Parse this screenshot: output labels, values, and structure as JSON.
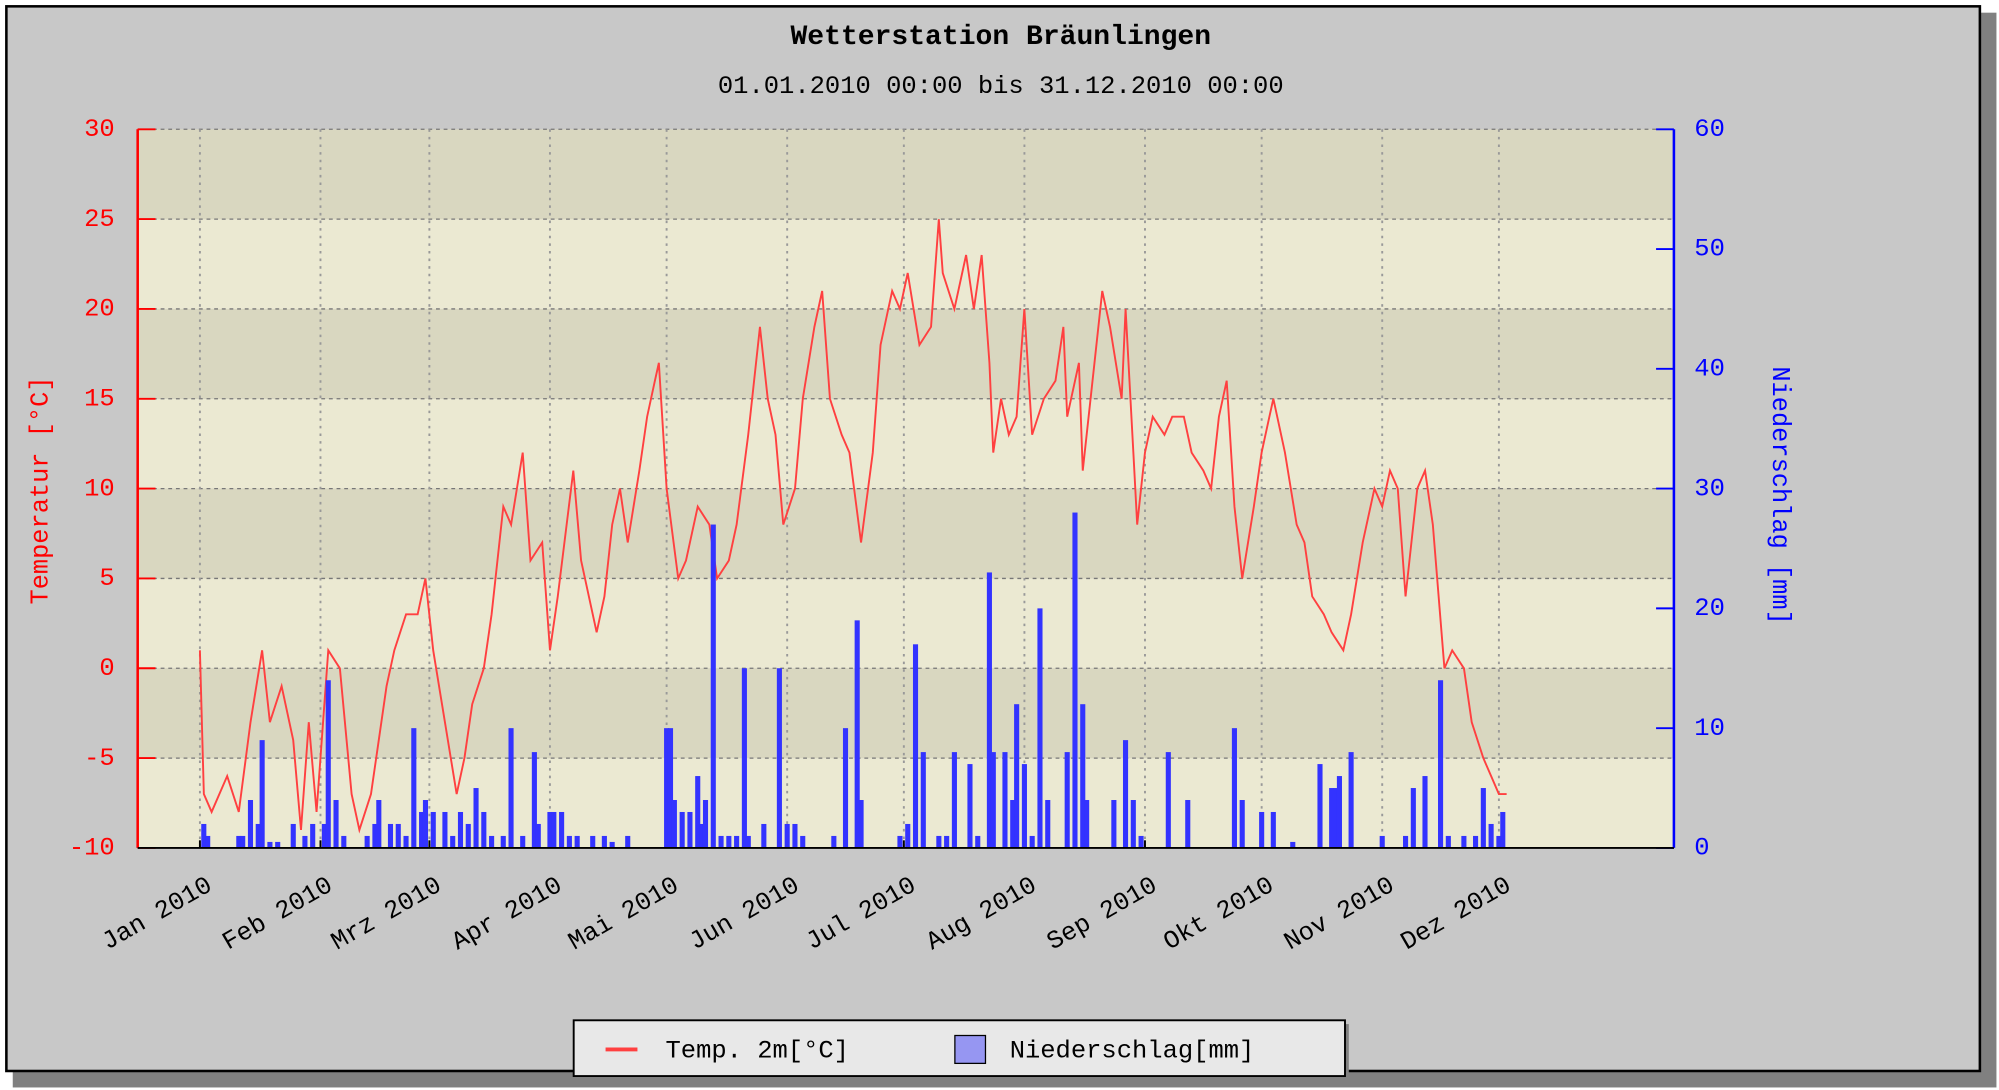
{
  "chart_data": {
    "type": "line-bar",
    "title": "Wetterstation Bräunlingen",
    "subtitle": "01.01.2010 00:00 bis 31.12.2010 00:00",
    "ylabel": "Temperatur [°C]",
    "y2label": "Niederschlag [mm]",
    "xlim": [
      -16,
      379
    ],
    "xticks": [
      {
        "value": 0,
        "label": "Jan 2010"
      },
      {
        "value": 31,
        "label": "Feb 2010"
      },
      {
        "value": 59,
        "label": "Mrz 2010"
      },
      {
        "value": 90,
        "label": "Apr 2010"
      },
      {
        "value": 120,
        "label": "Mai 2010"
      },
      {
        "value": 151,
        "label": "Jun 2010"
      },
      {
        "value": 181,
        "label": "Jul 2010"
      },
      {
        "value": 212,
        "label": "Aug 2010"
      },
      {
        "value": 243,
        "label": "Sep 2010"
      },
      {
        "value": 273,
        "label": "Okt 2010"
      },
      {
        "value": 304,
        "label": "Nov 2010"
      },
      {
        "value": 334,
        "label": "Dez 2010"
      }
    ],
    "ylim": [
      -10,
      30
    ],
    "yticks": [
      -10,
      -5,
      0,
      5,
      10,
      15,
      20,
      25,
      30
    ],
    "y2lim": [
      0,
      60
    ],
    "y2ticks": [
      0,
      10,
      20,
      30,
      40,
      50,
      60
    ],
    "grid": true,
    "legend": "bottom",
    "series": [
      {
        "name": "Temp. 2m[°C]",
        "color": "#ff4040",
        "kind": "line",
        "x": [
          0,
          1,
          3,
          7,
          10,
          13,
          16,
          18,
          21,
          24,
          26,
          28,
          30,
          33,
          36,
          39,
          41,
          44,
          46,
          48,
          50,
          53,
          56,
          58,
          60,
          63,
          66,
          68,
          70,
          73,
          75,
          78,
          80,
          83,
          85,
          88,
          90,
          92,
          96,
          98,
          102,
          104,
          106,
          108,
          110,
          113,
          115,
          117,
          118,
          120,
          123,
          125,
          128,
          131,
          133,
          136,
          138,
          141,
          144,
          146,
          148,
          150,
          153,
          155,
          158,
          160,
          162,
          165,
          167,
          170,
          173,
          175,
          178,
          180,
          182,
          185,
          188,
          190,
          191,
          194,
          197,
          199,
          201,
          203,
          204,
          206,
          208,
          210,
          212,
          214,
          217,
          220,
          222,
          223,
          226,
          227,
          230,
          232,
          234,
          237,
          238,
          240,
          241,
          243,
          245,
          248,
          250,
          253,
          255,
          258,
          260,
          262,
          264,
          266,
          268,
          271,
          273,
          275,
          276,
          279,
          282,
          284,
          286,
          289,
          291,
          294,
          296,
          299,
          302,
          304,
          306,
          308,
          310,
          313,
          315,
          317,
          320,
          322,
          325,
          327,
          330,
          332,
          334,
          336
        ],
        "values": [
          1,
          -7,
          -8,
          -6,
          -8,
          -3,
          1,
          -3,
          -1,
          -4,
          -9,
          -3,
          -8,
          1,
          0,
          -7,
          -9,
          -7,
          -4,
          -1,
          1,
          3,
          3,
          5,
          1,
          -3,
          -7,
          -5,
          -2,
          0,
          3,
          9,
          8,
          12,
          6,
          7,
          1,
          4,
          11,
          6,
          2,
          4,
          8,
          10,
          7,
          11,
          14,
          16,
          17,
          10,
          5,
          6,
          9,
          8,
          5,
          6,
          8,
          13,
          19,
          15,
          13,
          8,
          10,
          15,
          19,
          21,
          15,
          13,
          12,
          7,
          12,
          18,
          21,
          20,
          22,
          18,
          19,
          25,
          22,
          20,
          23,
          20,
          23,
          17,
          12,
          15,
          13,
          14,
          20,
          13,
          15,
          16,
          19,
          14,
          17,
          11,
          17,
          21,
          19,
          15,
          20,
          12,
          8,
          12,
          14,
          13,
          14,
          14,
          12,
          11,
          10,
          14,
          16,
          9,
          5,
          9,
          12,
          14,
          15,
          12,
          8,
          7,
          4,
          3,
          2,
          1,
          3,
          7,
          10,
          9,
          11,
          10,
          4,
          10,
          11,
          8,
          0,
          1,
          0,
          -3,
          -5,
          -6,
          -7,
          -7
        ]
      },
      {
        "name": "Niederschlag[mm]",
        "color": "#3333ff",
        "kind": "bar",
        "axis": "y2",
        "x": [
          1,
          2,
          10,
          11,
          13,
          15,
          16,
          18,
          20,
          24,
          27,
          29,
          32,
          33,
          35,
          37,
          43,
          45,
          46,
          49,
          51,
          53,
          55,
          57,
          58,
          60,
          63,
          65,
          67,
          69,
          71,
          73,
          75,
          78,
          80,
          83,
          86,
          87,
          90,
          91,
          93,
          95,
          97,
          101,
          104,
          106,
          110,
          120,
          121,
          122,
          124,
          126,
          128,
          129,
          130,
          132,
          134,
          136,
          138,
          140,
          141,
          145,
          149,
          151,
          153,
          155,
          163,
          166,
          169,
          170,
          180,
          182,
          184,
          186,
          190,
          192,
          194,
          198,
          200,
          203,
          204,
          207,
          209,
          210,
          212,
          214,
          216,
          218,
          223,
          225,
          227,
          228,
          235,
          238,
          240,
          242,
          249,
          254,
          266,
          268,
          273,
          276,
          281,
          288,
          291,
          292,
          293,
          296,
          304,
          310,
          312,
          315,
          319,
          321,
          325,
          328,
          330,
          332,
          334,
          335
        ],
        "values": [
          2,
          1,
          1,
          1,
          4,
          2,
          9,
          0.5,
          0.5,
          2,
          1,
          2,
          2,
          14,
          4,
          1,
          1,
          2,
          4,
          2,
          2,
          1,
          10,
          3,
          4,
          3,
          3,
          1,
          3,
          2,
          5,
          3,
          1,
          1,
          10,
          1,
          8,
          2,
          3,
          3,
          3,
          1,
          1,
          1,
          1,
          0.5,
          1,
          10,
          10,
          4,
          3,
          3,
          6,
          2,
          4,
          27,
          1,
          1,
          1,
          15,
          1,
          2,
          15,
          2,
          2,
          1,
          1,
          10,
          19,
          4,
          1,
          2,
          17,
          8,
          1,
          1,
          8,
          7,
          1,
          23,
          8,
          8,
          4,
          12,
          7,
          1,
          20,
          4,
          8,
          28,
          12,
          4,
          4,
          9,
          4,
          1,
          8,
          4,
          10,
          4,
          3,
          3,
          0.5,
          7,
          5,
          5,
          6,
          8,
          1,
          1,
          5,
          6,
          14,
          1,
          1,
          1,
          5,
          2,
          1,
          3
        ]
      }
    ]
  }
}
